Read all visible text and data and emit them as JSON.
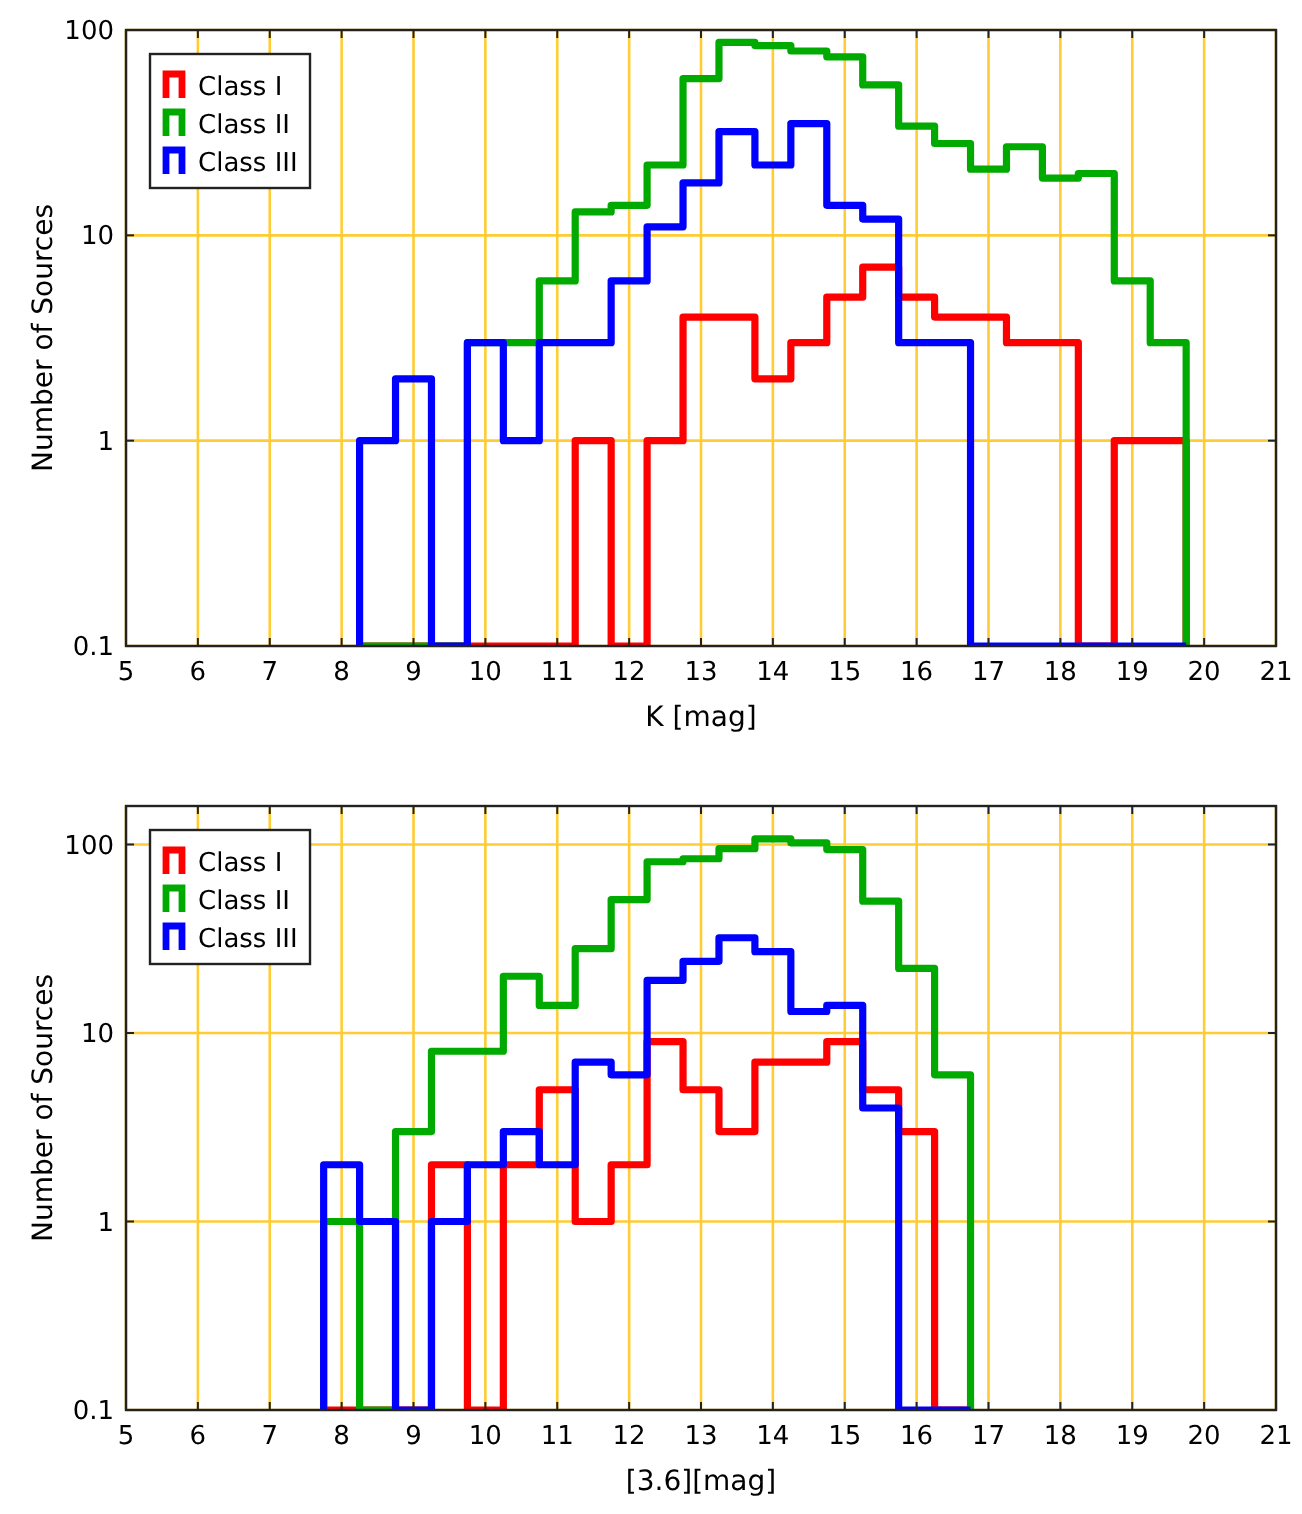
{
  "chart_data": [
    {
      "type": "histogram",
      "xlabel": "K [mag]",
      "ylabel": "Number of Sources",
      "log": "y",
      "grid": true,
      "legend": "top left",
      "xlim": [
        5,
        21
      ],
      "xticks": [
        5,
        6,
        7,
        8,
        9,
        10,
        11,
        12,
        13,
        14,
        15,
        16,
        17,
        18,
        19,
        20,
        21
      ],
      "ylim": [
        0.1,
        100
      ],
      "yticks": [
        0.1,
        1,
        10,
        100
      ],
      "bins": [
        8.25,
        8.75,
        9.25,
        9.75,
        10.25,
        10.75,
        11.25,
        11.75,
        12.25,
        12.75,
        13.25,
        13.75,
        14.25,
        14.75,
        15.25,
        15.75,
        16.25,
        16.75,
        17.25,
        17.75,
        18.25,
        18.75,
        19.25,
        19.75
      ],
      "series": [
        {
          "name": "Class I",
          "color": "#ff0000",
          "values": [
            0.1,
            0.1,
            0.1,
            0.1,
            0.1,
            0.1,
            1,
            0.1,
            1,
            4,
            4,
            2,
            3,
            5,
            7,
            5,
            4,
            4,
            3,
            3,
            0.1,
            1,
            1
          ]
        },
        {
          "name": "Class II",
          "color": "#00aa00",
          "values": [
            0.1,
            0.1,
            0.1,
            3,
            3,
            6,
            13,
            14,
            22,
            58,
            87,
            84,
            79,
            74,
            54,
            34,
            28,
            21,
            27,
            19,
            20,
            6,
            3
          ]
        },
        {
          "name": "Class III",
          "color": "#0000ff",
          "values": [
            1,
            2,
            0.1,
            3,
            1,
            3,
            3,
            6,
            11,
            18,
            32,
            22,
            35,
            14,
            12,
            3,
            3,
            0.1,
            0.1,
            0.1,
            0.1,
            0.1,
            0.1
          ]
        }
      ]
    },
    {
      "type": "histogram",
      "xlabel": "[3.6][mag]",
      "ylabel": "Number of Sources",
      "log": "y",
      "grid": true,
      "legend": "top left",
      "xlim": [
        5,
        21
      ],
      "xticks": [
        5,
        6,
        7,
        8,
        9,
        10,
        11,
        12,
        13,
        14,
        15,
        16,
        17,
        18,
        19,
        20,
        21
      ],
      "ylim": [
        0.1,
        160
      ],
      "yticks": [
        0.1,
        1,
        10,
        100
      ],
      "bins": [
        7.75,
        8.25,
        8.75,
        9.25,
        9.75,
        10.25,
        10.75,
        11.25,
        11.75,
        12.25,
        12.75,
        13.25,
        13.75,
        14.25,
        14.75,
        15.25,
        15.75,
        16.25,
        16.75
      ],
      "series": [
        {
          "name": "Class I",
          "color": "#ff0000",
          "values": [
            0.1,
            0.1,
            0.1,
            2,
            0.1,
            2,
            5,
            1,
            2,
            9,
            5,
            3,
            7,
            7,
            9,
            5,
            3,
            0.1
          ]
        },
        {
          "name": "Class II",
          "color": "#00aa00",
          "values": [
            1,
            0.1,
            3,
            8,
            8,
            20,
            14,
            28,
            51,
            81,
            84,
            95,
            107,
            102,
            94,
            50,
            22,
            6
          ]
        },
        {
          "name": "Class III",
          "color": "#0000ff",
          "values": [
            2,
            1,
            0.1,
            1,
            2,
            3,
            2,
            7,
            6,
            19,
            24,
            32,
            27,
            13,
            14,
            4,
            0.1,
            0.1
          ]
        }
      ]
    }
  ]
}
